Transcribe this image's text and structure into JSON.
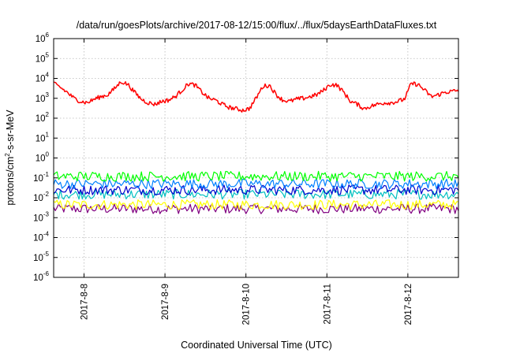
{
  "chart_data": {
    "type": "line",
    "title": "/data/run/goesPlots/archive/2017-08-12/15:00/flux/../flux/5daysEarthDataFluxes.txt",
    "xlabel": "Coordinated Universal Time (UTC)",
    "ylabel": {
      "base": "protons/cm",
      "sup": "2",
      "rest": "-s-sr-MeV"
    },
    "yscale": "log",
    "ylim": [
      1e-06,
      1000000.0
    ],
    "yticks": [
      {
        "base": "10",
        "exp": "6",
        "value": 1000000.0
      },
      {
        "base": "10",
        "exp": "5",
        "value": 100000.0
      },
      {
        "base": "10",
        "exp": "4",
        "value": 10000.0
      },
      {
        "base": "10",
        "exp": "3",
        "value": 1000.0
      },
      {
        "base": "10",
        "exp": "2",
        "value": 100.0
      },
      {
        "base": "10",
        "exp": "1",
        "value": 10.0
      },
      {
        "base": "10",
        "exp": "0",
        "value": 1.0
      },
      {
        "base": "10",
        "exp": "-1",
        "value": 0.1
      },
      {
        "base": "10",
        "exp": "-2",
        "value": 0.01
      },
      {
        "base": "10",
        "exp": "-3",
        "value": 0.001
      },
      {
        "base": "10",
        "exp": "-4",
        "value": 0.0001
      },
      {
        "base": "10",
        "exp": "-5",
        "value": 1e-05
      },
      {
        "base": "10",
        "exp": "-6",
        "value": 1e-06
      }
    ],
    "xlim": [
      "2017-08-07T15:00",
      "2017-08-12T15:00"
    ],
    "xticks": [
      {
        "label": "2017-8-8",
        "value": "2017-08-08T00:00"
      },
      {
        "label": "2017-8-9",
        "value": "2017-08-09T00:00"
      },
      {
        "label": "2017-8-10",
        "value": "2017-08-10T00:00"
      },
      {
        "label": "2017-8-11",
        "value": "2017-08-11T00:00"
      },
      {
        "label": "2017-8-12",
        "value": "2017-08-12T00:00"
      }
    ],
    "grid": true,
    "series": [
      {
        "color": "#ff0000",
        "x": [
          "2017-08-07T15:00",
          "2017-08-07T17:00",
          "2017-08-07T19:00",
          "2017-08-07T21:00",
          "2017-08-07T23:00",
          "2017-08-08T01:00",
          "2017-08-08T03:00",
          "2017-08-08T05:00",
          "2017-08-08T07:00",
          "2017-08-08T09:00",
          "2017-08-08T11:00",
          "2017-08-08T13:00",
          "2017-08-08T15:00",
          "2017-08-08T17:00",
          "2017-08-08T19:00",
          "2017-08-08T21:00",
          "2017-08-08T23:00",
          "2017-08-09T01:00",
          "2017-08-09T03:00",
          "2017-08-09T05:00",
          "2017-08-09T07:00",
          "2017-08-09T09:00",
          "2017-08-09T11:00",
          "2017-08-09T13:00",
          "2017-08-09T15:00",
          "2017-08-09T17:00",
          "2017-08-09T19:00",
          "2017-08-09T21:00",
          "2017-08-09T23:00",
          "2017-08-10T01:00",
          "2017-08-10T03:00",
          "2017-08-10T05:00",
          "2017-08-10T07:00",
          "2017-08-10T09:00",
          "2017-08-10T11:00",
          "2017-08-10T13:00",
          "2017-08-10T15:00",
          "2017-08-10T17:00",
          "2017-08-10T19:00",
          "2017-08-10T21:00",
          "2017-08-10T23:00",
          "2017-08-11T01:00",
          "2017-08-11T03:00",
          "2017-08-11T05:00",
          "2017-08-11T07:00",
          "2017-08-11T09:00",
          "2017-08-11T11:00",
          "2017-08-11T13:00",
          "2017-08-11T15:00",
          "2017-08-11T17:00",
          "2017-08-11T19:00",
          "2017-08-11T21:00",
          "2017-08-11T23:00",
          "2017-08-12T01:00",
          "2017-08-12T03:00",
          "2017-08-12T05:00",
          "2017-08-12T07:00",
          "2017-08-12T09:00",
          "2017-08-12T11:00",
          "2017-08-12T13:00",
          "2017-08-12T15:00"
        ],
        "values": [
          5500,
          3500,
          2000,
          1000,
          700,
          600,
          900,
          1200,
          1500,
          3000,
          7000,
          5000,
          2000,
          900,
          600,
          500,
          700,
          800,
          1200,
          2500,
          5500,
          4500,
          2000,
          1000,
          800,
          500,
          350,
          300,
          250,
          300,
          1000,
          4000,
          4500,
          1500,
          800,
          700,
          900,
          1000,
          1200,
          1500,
          2500,
          5000,
          4500,
          2000,
          700,
          500,
          300,
          400,
          500,
          600,
          600,
          700,
          900,
          5500,
          5000,
          2500,
          1200,
          1500,
          2000,
          2200,
          2500
        ]
      },
      {
        "color": "#00ff00",
        "level": 0.12
      },
      {
        "color": "#0080ff",
        "level": 0.05
      },
      {
        "color": "#0000cc",
        "level": 0.025
      },
      {
        "color": "#00c0c0",
        "level": 0.015
      },
      {
        "color": "#ffff00",
        "level": 0.0045
      },
      {
        "color": "#800080",
        "level": 0.0028
      }
    ]
  }
}
